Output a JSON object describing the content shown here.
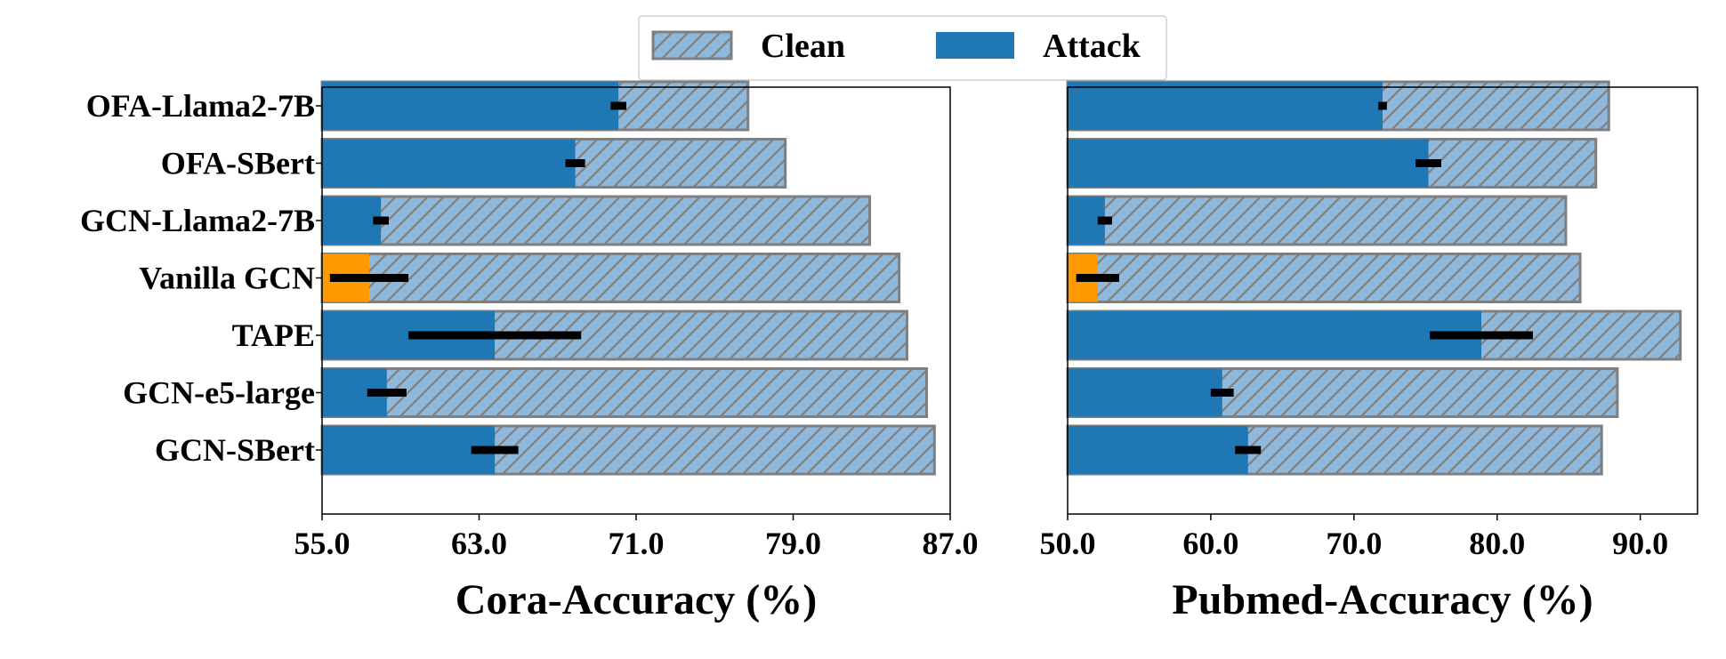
{
  "legend": {
    "items": [
      {
        "label": "Clean",
        "style": "hatched"
      },
      {
        "label": "Attack",
        "style": "solid"
      }
    ]
  },
  "colors": {
    "clean_fill": "#8fb9dc",
    "clean_hatch": "#7f7f7f",
    "attack": "#1f77b4",
    "highlight": "#ff9900",
    "error_bar": "#000000"
  },
  "chart_data": [
    {
      "type": "bar",
      "orientation": "horizontal",
      "xlabel": "Cora-Accuracy (%)",
      "xlim": [
        55.0,
        87.0
      ],
      "xticks": [
        "55.0",
        "63.0",
        "71.0",
        "79.0",
        "87.0"
      ],
      "xtick_values": [
        55,
        63,
        71,
        79,
        87
      ],
      "categories": [
        "OFA-Llama2-7B",
        "OFA-SBert",
        "GCN-Llama2-7B",
        "Vanilla GCN",
        "TAPE",
        "GCN-e5-large",
        "GCN-SBert"
      ],
      "series": [
        {
          "name": "Clean",
          "values": [
            76.7,
            78.6,
            82.9,
            84.4,
            84.8,
            85.8,
            86.2
          ]
        },
        {
          "name": "Attack",
          "values": [
            70.1,
            67.9,
            58.0,
            57.4,
            63.8,
            58.3,
            63.8
          ],
          "error": [
            0.4,
            0.5,
            0.4,
            2.0,
            4.4,
            1.0,
            1.2
          ]
        }
      ],
      "highlight_category": "Vanilla GCN"
    },
    {
      "type": "bar",
      "orientation": "horizontal",
      "xlabel": "Pubmed-Accuracy (%)",
      "xlim": [
        50.0,
        94.0
      ],
      "xticks": [
        "50.0",
        "60.0",
        "70.0",
        "80.0",
        "90.0"
      ],
      "xtick_values": [
        50,
        60,
        70,
        80,
        90
      ],
      "categories": [
        "OFA-Llama2-7B",
        "OFA-SBert",
        "GCN-Llama2-7B",
        "Vanilla GCN",
        "TAPE",
        "GCN-e5-large",
        "GCN-SBert"
      ],
      "series": [
        {
          "name": "Clean",
          "values": [
            87.8,
            86.9,
            84.8,
            85.8,
            92.8,
            88.4,
            87.3
          ]
        },
        {
          "name": "Attack",
          "values": [
            72.0,
            75.2,
            52.6,
            52.1,
            78.9,
            60.8,
            62.6
          ],
          "error": [
            0.3,
            0.9,
            0.5,
            1.5,
            3.6,
            0.8,
            0.9
          ]
        }
      ],
      "highlight_category": "Vanilla GCN"
    }
  ]
}
